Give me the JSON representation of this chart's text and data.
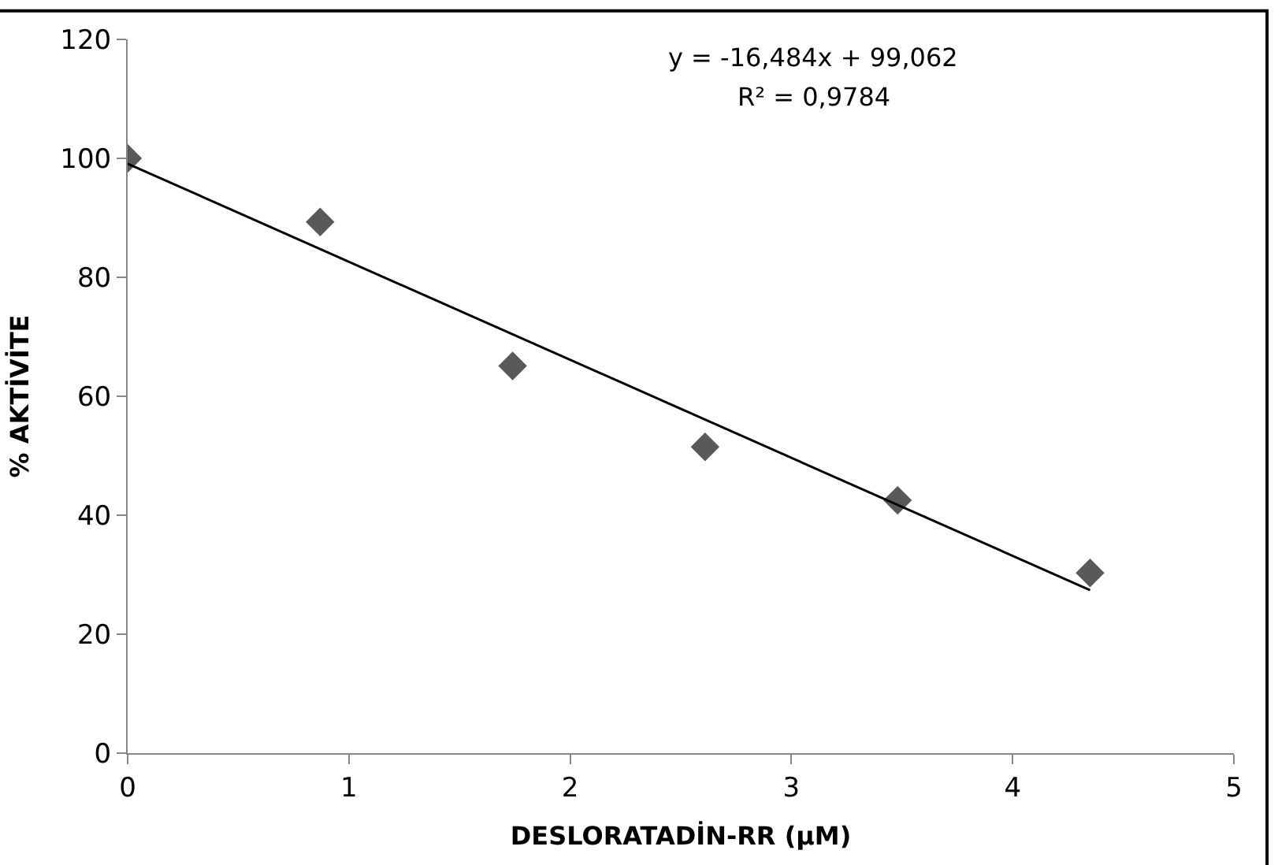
{
  "chart_data": {
    "type": "scatter",
    "xlabel": "DESLORATADİN-RR (µM)",
    "ylabel": "% AKTİVİTE",
    "xlim": [
      0,
      5
    ],
    "xticks": [
      0,
      1,
      2,
      3,
      4,
      5
    ],
    "ylim": [
      0,
      120
    ],
    "yticks": [
      0,
      20,
      40,
      60,
      80,
      100,
      120
    ],
    "series": [
      {
        "color": "#595959",
        "marker": "diamond",
        "x": [
          0,
          0.87,
          1.74,
          2.61,
          3.48,
          4.35
        ],
        "values": [
          100,
          89.3,
          65.1,
          51.5,
          42.5,
          30.3
        ]
      },
      {
        "type": "line",
        "color": "#000000",
        "marker": "none",
        "line_style": "solid",
        "x": [
          0,
          4.35
        ],
        "values": [
          99.1,
          27.4
        ]
      }
    ],
    "annotations": [
      "y = -16,484x + 99,062",
      "R² = 0,9784"
    ]
  }
}
